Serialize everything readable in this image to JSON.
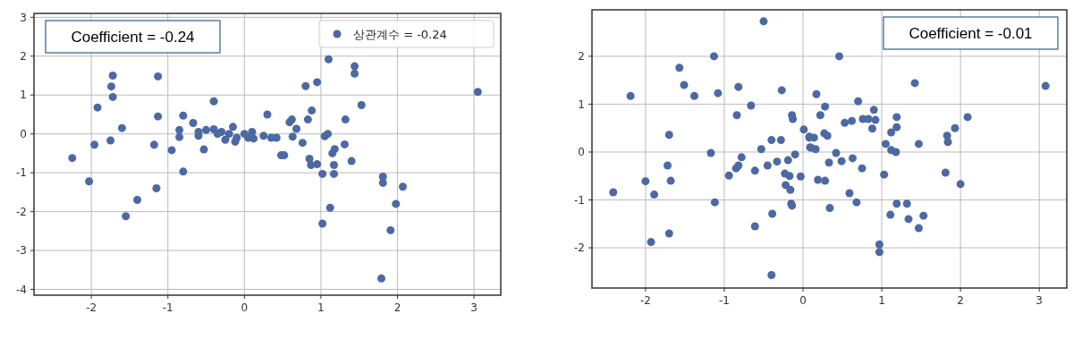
{
  "chart_data": [
    {
      "type": "scatter",
      "annotations": [
        "Coefficient = -0.24"
      ],
      "xlim": [
        -2.75,
        3.35
      ],
      "ylim": [
        -4.15,
        3.1
      ],
      "xticks": [
        -2,
        -1,
        0,
        1,
        2,
        3
      ],
      "yticks": [
        -4,
        -3,
        -2,
        -1,
        0,
        1,
        2,
        3
      ],
      "grid": true,
      "legend": "top right",
      "marker": "circle",
      "series": [
        {
          "name": "상관계수 = -0.24",
          "color": "#4c69a3",
          "x": [
            -2.25,
            -2.03,
            -1.92,
            -1.96,
            -1.72,
            -1.74,
            -1.72,
            -1.75,
            -1.6,
            -1.4,
            -1.55,
            -1.13,
            -1.13,
            -1.18,
            -1.15,
            -0.95,
            -0.8,
            -0.85,
            -0.85,
            -0.8,
            -0.67,
            -0.6,
            -0.53,
            -0.4,
            -0.6,
            -0.5,
            -0.4,
            -0.3,
            -0.2,
            -0.25,
            -0.15,
            -0.1,
            -0.12,
            0,
            0.1,
            0.12,
            -0.35,
            0.05,
            0.3,
            0.25,
            0.35,
            0.42,
            0.48,
            0.52,
            0.59,
            0.62,
            0.63,
            0.68,
            0.76,
            0.8,
            0.95,
            1.1,
            0.83,
            0.88,
            0.85,
            0.87,
            0.95,
            1.02,
            1.05,
            1.09,
            1.15,
            1.18,
            1.17,
            1.17,
            1.12,
            1.02,
            1.31,
            1.32,
            1.4,
            1.44,
            1.44,
            1.53,
            1.81,
            1.81,
            2.07,
            1.98,
            1.91,
            1.79,
            3.05
          ],
          "values": [
            -0.62,
            -1.22,
            0.68,
            -0.28,
            1.5,
            1.22,
            0.95,
            -0.17,
            0.15,
            -1.7,
            -2.12,
            1.48,
            0.45,
            -0.28,
            -1.4,
            -0.42,
            0.47,
            0.1,
            -0.08,
            -0.97,
            0.28,
            -0.05,
            -0.4,
            0.84,
            0.05,
            0.1,
            0.12,
            0.05,
            0,
            -0.15,
            0.18,
            -0.1,
            -0.2,
            0,
            0.05,
            -0.12,
            0,
            -0.1,
            0.5,
            -0.05,
            -0.1,
            -0.1,
            -0.55,
            -0.55,
            0.3,
            0.37,
            -0.07,
            0.13,
            -0.23,
            1.23,
            1.33,
            1.92,
            0.37,
            0.6,
            -0.64,
            -0.8,
            -0.78,
            -1.03,
            -0.06,
            0,
            -0.5,
            -0.39,
            -0.8,
            -1.03,
            -1.9,
            -2.31,
            -0.27,
            0.37,
            -0.7,
            1.74,
            1.55,
            0.74,
            -1.1,
            -1.26,
            -1.36,
            -1.8,
            -2.48,
            -3.72,
            1.08
          ]
        }
      ]
    },
    {
      "type": "scatter",
      "annotations": [
        "Coefficient = -0.01"
      ],
      "xlim": [
        -2.68,
        3.35
      ],
      "ylim": [
        -2.84,
        2.97
      ],
      "xticks": [
        -2,
        -1,
        0,
        1,
        2,
        3
      ],
      "yticks": [
        -2,
        -1,
        0,
        1,
        2
      ],
      "grid": true,
      "marker": "circle",
      "series": [
        {
          "color": "#4c69a3",
          "x": [
            -0.5,
            -1.13,
            -1.57,
            -1.51,
            -1.38,
            -2.19,
            -1.08,
            -0.82,
            -0.27,
            -0.66,
            -0.84,
            -0.14,
            -0.13,
            0.01,
            0.08,
            0.09,
            -1.7,
            -1.17,
            -0.53,
            -0.4,
            -0.28,
            -0.78,
            -0.82,
            -0.85,
            -0.94,
            -0.61,
            -0.45,
            -0.33,
            -0.19,
            -0.1,
            -0.23,
            -0.17,
            -0.03,
            -0.22,
            -0.16,
            -0.15,
            -0.14,
            -0.39,
            -0.61,
            -0.4,
            -1.72,
            -1.68,
            -2.0,
            -2.41,
            -1.89,
            -1.12,
            -1.7,
            -1.93,
            0.46,
            0.17,
            0.28,
            0.22,
            0.08,
            0.14,
            0.1,
            0.16,
            0.27,
            0.31,
            0.42,
            0.33,
            0.49,
            0.63,
            0.19,
            0.28,
            0.75,
            0.59,
            0.68,
            0.34,
            0.53,
            0.62,
            0.7,
            0.76,
            0.83,
            0.9,
            0.92,
            0.88,
            1.05,
            1.12,
            1.18,
            1.03,
            1.12,
            1.19,
            1.19,
            1.42,
            1.47,
            0.97,
            0.97,
            1.11,
            1.19,
            1.32,
            1.34,
            1.53,
            1.47,
            1.81,
            1.83,
            1.84,
            1.93,
            2.09,
            2.0,
            3.08
          ],
          "values": [
            2.73,
            2.0,
            1.76,
            1.4,
            1.17,
            1.17,
            1.23,
            1.36,
            1.29,
            0.97,
            0.77,
            0.77,
            0.69,
            0.47,
            0.32,
            0.1,
            0.36,
            -0.02,
            0.06,
            0.25,
            0.25,
            -0.11,
            -0.28,
            -0.34,
            -0.49,
            -0.39,
            -0.28,
            -0.2,
            -0.17,
            -0.05,
            -0.45,
            -0.5,
            -0.51,
            -0.69,
            -0.79,
            -1.08,
            -1.12,
            -1.29,
            -1.55,
            -2.57,
            -0.28,
            -0.6,
            -0.61,
            -0.84,
            -0.89,
            -1.05,
            -1.7,
            -1.88,
            2.0,
            1.21,
            0.95,
            0.77,
            0.3,
            0.3,
            0.09,
            0.06,
            0.39,
            0.34,
            -0.02,
            -0.22,
            -0.19,
            -0.13,
            -0.58,
            -0.6,
            -0.34,
            -0.86,
            -1.05,
            -1.17,
            0.61,
            0.65,
            1.06,
            0.69,
            0.69,
            0.88,
            0.67,
            0.49,
            0.17,
            0.04,
            0,
            -0.47,
            0.41,
            0.52,
            0.73,
            1.44,
            0.17,
            -1.93,
            -2.09,
            -1.31,
            -1.08,
            -1.08,
            -1.4,
            -1.33,
            -1.59,
            -0.43,
            0.34,
            0.21,
            0.5,
            0.73,
            -0.67,
            1.38
          ]
        }
      ]
    }
  ]
}
